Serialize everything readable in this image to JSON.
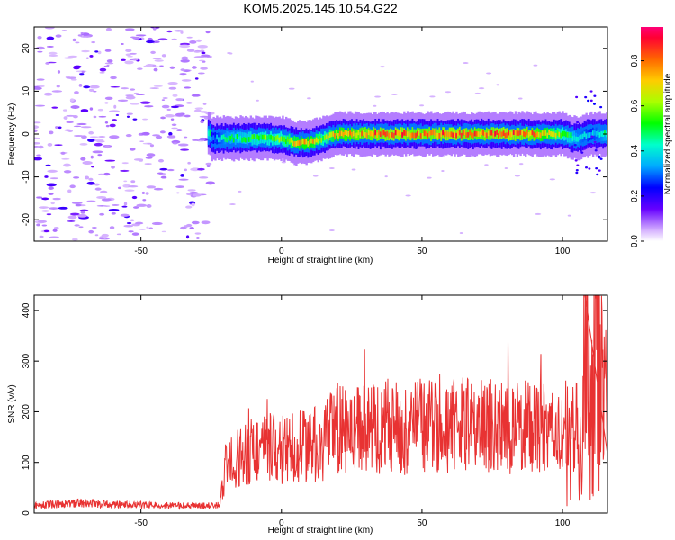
{
  "title": "KOM5.2025.145.10.54.G22",
  "chart_data": [
    {
      "type": "heatmap",
      "xlabel": "Height of straight line (km)",
      "ylabel": "Frequency (Hz)",
      "xlim": [
        -88,
        116
      ],
      "ylim": [
        -25,
        25
      ],
      "xticks": [
        -50,
        0,
        50,
        100
      ],
      "yticks": [
        -20,
        -10,
        0,
        10,
        20
      ],
      "colorbar": {
        "label": "Normalized spectral amplitude",
        "range": [
          0,
          0.95
        ],
        "ticks": [
          0.0,
          0.2,
          0.4,
          0.6,
          0.8
        ]
      },
      "signal_band": {
        "x": [
          -25,
          -20,
          -10,
          0,
          5,
          10,
          15,
          20,
          30,
          40,
          50,
          60,
          70,
          80,
          90,
          100,
          105,
          110,
          116
        ],
        "center_freq": [
          -1,
          -1,
          -1,
          -1,
          -2,
          -2,
          -1,
          0,
          0,
          0,
          0,
          0,
          0,
          0,
          0,
          0,
          -1,
          0,
          0
        ],
        "amplitude": [
          0.3,
          0.45,
          0.55,
          0.6,
          0.7,
          0.75,
          0.6,
          0.75,
          0.8,
          0.85,
          0.8,
          0.85,
          0.8,
          0.85,
          0.8,
          0.6,
          0.45,
          0.35,
          0.5
        ]
      }
    },
    {
      "type": "line",
      "xlabel": "Height of straight line (km)",
      "ylabel": "SNR (v/v)",
      "xlim": [
        -88,
        116
      ],
      "ylim": [
        0,
        430
      ],
      "xticks": [
        -50,
        0,
        50,
        100
      ],
      "yticks": [
        0,
        100,
        200,
        300,
        400
      ],
      "series": [
        {
          "color": "#e83232",
          "x": [
            -88,
            -80,
            -70,
            -60,
            -50,
            -40,
            -30,
            -22,
            -20,
            -15,
            -10,
            -5,
            0,
            5,
            10,
            15,
            20,
            25,
            30,
            35,
            40,
            45,
            50,
            55,
            60,
            65,
            70,
            75,
            80,
            85,
            90,
            95,
            100,
            103,
            105,
            107,
            108,
            110,
            112,
            116
          ],
          "y": [
            15,
            18,
            20,
            17,
            16,
            15,
            14,
            15,
            90,
            110,
            125,
            130,
            125,
            130,
            135,
            140,
            170,
            160,
            165,
            170,
            175,
            160,
            175,
            180,
            170,
            175,
            170,
            175,
            165,
            175,
            170,
            165,
            150,
            120,
            180,
            60,
            430,
            200,
            330,
            170
          ]
        }
      ]
    }
  ]
}
